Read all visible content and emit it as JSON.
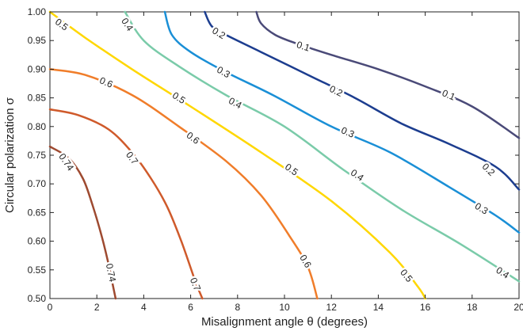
{
  "chart_data": {
    "type": "line",
    "title": "",
    "xlabel": "Misalignment angle θ  (degrees)",
    "ylabel": "Circular polarization σ",
    "xlim": [
      0,
      20
    ],
    "ylim": [
      0.5,
      1.0
    ],
    "x_ticks": [
      0,
      2,
      4,
      6,
      8,
      10,
      12,
      14,
      16,
      18,
      20
    ],
    "x_tick_labels": [
      "0",
      "2",
      "4",
      "6",
      "8",
      "10",
      "12",
      "14",
      "16",
      "18",
      "20"
    ],
    "y_ticks": [
      0.5,
      0.55,
      0.6,
      0.65,
      0.7,
      0.75,
      0.8,
      0.85,
      0.9,
      0.95,
      1.0
    ],
    "y_tick_labels": [
      "0.50",
      "0.55",
      "0.60",
      "0.65",
      "0.70",
      "0.75",
      "0.80",
      "0.85",
      "0.90",
      "0.95",
      "1.00"
    ],
    "grid": false,
    "series": [
      {
        "level": "0.1",
        "color": "#4a4a78",
        "points": [
          [
            8.8,
            1.0
          ],
          [
            9.0,
            0.98
          ],
          [
            9.6,
            0.96
          ],
          [
            10.5,
            0.945
          ],
          [
            12.0,
            0.925
          ],
          [
            14.0,
            0.9
          ],
          [
            16.0,
            0.87
          ],
          [
            18.0,
            0.835
          ],
          [
            20.0,
            0.78
          ]
        ],
        "labels": [
          {
            "text": "0.1",
            "at": [
              10.8,
              0.94
            ]
          },
          {
            "text": "0.1",
            "at": [
              17.0,
              0.855
            ]
          }
        ]
      },
      {
        "level": "0.2",
        "color": "#1c3d8f",
        "points": [
          [
            6.6,
            1.0
          ],
          [
            6.9,
            0.975
          ],
          [
            7.5,
            0.96
          ],
          [
            9.0,
            0.93
          ],
          [
            11.0,
            0.89
          ],
          [
            13.0,
            0.85
          ],
          [
            15.0,
            0.805
          ],
          [
            17.0,
            0.77
          ],
          [
            19.0,
            0.73
          ],
          [
            20.0,
            0.69
          ]
        ],
        "labels": [
          {
            "text": "0.2",
            "at": [
              7.2,
              0.963
            ]
          },
          {
            "text": "0.2",
            "at": [
              12.2,
              0.862
            ]
          },
          {
            "text": "0.2",
            "at": [
              18.7,
              0.725
            ]
          }
        ]
      },
      {
        "level": "0.3",
        "color": "#1a8fd6",
        "points": [
          [
            4.9,
            1.0
          ],
          [
            5.2,
            0.96
          ],
          [
            6.0,
            0.93
          ],
          [
            7.5,
            0.895
          ],
          [
            9.5,
            0.855
          ],
          [
            12.0,
            0.8
          ],
          [
            14.5,
            0.755
          ],
          [
            17.0,
            0.695
          ],
          [
            19.0,
            0.645
          ],
          [
            20.0,
            0.615
          ]
        ],
        "labels": [
          {
            "text": "0.3",
            "at": [
              7.4,
              0.895
            ]
          },
          {
            "text": "0.3",
            "at": [
              12.7,
              0.79
            ]
          },
          {
            "text": "0.3",
            "at": [
              18.4,
              0.657
            ]
          }
        ]
      },
      {
        "level": "0.4",
        "color": "#7acba9",
        "points": [
          [
            3.2,
            1.0
          ],
          [
            4.0,
            0.95
          ],
          [
            5.5,
            0.905
          ],
          [
            7.5,
            0.855
          ],
          [
            10.0,
            0.8
          ],
          [
            12.5,
            0.725
          ],
          [
            15.0,
            0.655
          ],
          [
            17.5,
            0.595
          ],
          [
            20.0,
            0.53
          ]
        ],
        "labels": [
          {
            "text": "0.4",
            "at": [
              3.3,
              0.978
            ]
          },
          {
            "text": "0.4",
            "at": [
              7.9,
              0.841
            ]
          },
          {
            "text": "0.4",
            "at": [
              13.1,
              0.715
            ]
          },
          {
            "text": "0.4",
            "at": [
              19.3,
              0.545
            ]
          }
        ]
      },
      {
        "level": "0.5",
        "color": "#ffd700",
        "points": [
          [
            0.0,
            1.0
          ],
          [
            1.5,
            0.955
          ],
          [
            3.5,
            0.9
          ],
          [
            6.0,
            0.835
          ],
          [
            9.0,
            0.755
          ],
          [
            12.0,
            0.67
          ],
          [
            14.5,
            0.58
          ],
          [
            15.7,
            0.52
          ],
          [
            16.0,
            0.5
          ]
        ],
        "labels": [
          {
            "text": "0.5",
            "at": [
              0.5,
              0.978
            ]
          },
          {
            "text": "0.5",
            "at": [
              5.5,
              0.85
            ]
          },
          {
            "text": "0.5",
            "at": [
              10.3,
              0.725
            ]
          },
          {
            "text": "0.5",
            "at": [
              15.2,
              0.54
            ]
          }
        ]
      },
      {
        "level": "0.6",
        "color": "#f07d2a",
        "points": [
          [
            0.0,
            0.9
          ],
          [
            1.5,
            0.89
          ],
          [
            3.5,
            0.855
          ],
          [
            5.5,
            0.8
          ],
          [
            7.5,
            0.74
          ],
          [
            9.0,
            0.68
          ],
          [
            10.2,
            0.61
          ],
          [
            11.0,
            0.555
          ],
          [
            11.4,
            0.5
          ]
        ],
        "labels": [
          {
            "text": "0.6",
            "at": [
              2.4,
              0.877
            ]
          },
          {
            "text": "0.6",
            "at": [
              6.1,
              0.78
            ]
          },
          {
            "text": "0.6",
            "at": [
              10.9,
              0.565
            ]
          }
        ]
      },
      {
        "level": "0.7",
        "color": "#cf5a2b",
        "points": [
          [
            0.0,
            0.83
          ],
          [
            1.2,
            0.82
          ],
          [
            2.5,
            0.795
          ],
          [
            3.5,
            0.755
          ],
          [
            4.3,
            0.71
          ],
          [
            5.0,
            0.66
          ],
          [
            5.6,
            0.6
          ],
          [
            6.2,
            0.53
          ],
          [
            6.5,
            0.5
          ]
        ],
        "labels": [
          {
            "text": "0.7",
            "at": [
              3.5,
              0.745
            ]
          },
          {
            "text": "0.7",
            "at": [
              6.2,
              0.525
            ]
          }
        ]
      },
      {
        "level": "0.74",
        "color": "#9e4a30",
        "points": [
          [
            0.0,
            0.765
          ],
          [
            0.8,
            0.745
          ],
          [
            1.4,
            0.71
          ],
          [
            1.8,
            0.665
          ],
          [
            2.2,
            0.61
          ],
          [
            2.5,
            0.56
          ],
          [
            2.7,
            0.52
          ],
          [
            2.8,
            0.5
          ]
        ],
        "labels": [
          {
            "text": "0.74",
            "at": [
              0.7,
              0.738
            ]
          },
          {
            "text": "0.74",
            "at": [
              2.6,
              0.545
            ]
          }
        ]
      }
    ]
  }
}
